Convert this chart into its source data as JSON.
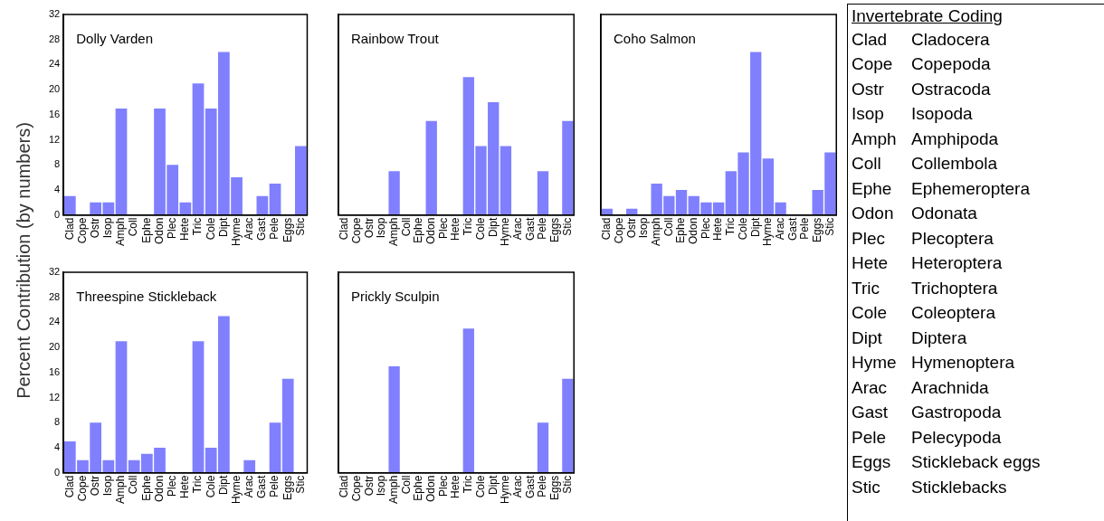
{
  "chart_data": [
    {
      "type": "bar",
      "title": "Dolly Varden",
      "ylabel": "Percent Contribution (by numbers)",
      "categories": [
        "Clad",
        "Cope",
        "Ostr",
        "Isop",
        "Amph",
        "Coll",
        "Ephe",
        "Odon",
        "Plec",
        "Hete",
        "Tric",
        "Cole",
        "Dipt",
        "Hyme",
        "Arac",
        "Gast",
        "Pele",
        "Eggs",
        "Stic"
      ],
      "color": "#8080ff",
      "values": [
        3,
        0,
        2,
        2,
        17,
        0,
        0,
        17,
        8,
        2,
        21,
        17,
        26,
        6,
        0,
        3,
        5,
        0,
        11
      ],
      "ylim": [
        0,
        32
      ],
      "yticks": [
        0,
        4,
        8,
        12,
        16,
        20,
        24,
        28,
        32
      ],
      "grid": false,
      "legend": false
    },
    {
      "type": "bar",
      "title": "Rainbow Trout",
      "categories": [
        "Clad",
        "Cope",
        "Ostr",
        "Isop",
        "Amph",
        "Coll",
        "Ephe",
        "Odon",
        "Plec",
        "Hete",
        "Tric",
        "Cole",
        "Dipt",
        "Hyme",
        "Arac",
        "Gast",
        "Pele",
        "Eggs",
        "Stic"
      ],
      "color": "#8080ff",
      "values": [
        0,
        0,
        0,
        0,
        7,
        0,
        0,
        15,
        0,
        0,
        22,
        11,
        18,
        11,
        0,
        0,
        7,
        0,
        15
      ],
      "ylim": [
        0,
        32
      ],
      "yticks": [
        0,
        4,
        8,
        12,
        16,
        20,
        24,
        28,
        32
      ],
      "tick_labels": "x",
      "grid": false,
      "legend": false
    },
    {
      "type": "bar",
      "title": "Coho Salmon",
      "categories": [
        "Clad",
        "Cope",
        "Ostr",
        "Isop",
        "Amph",
        "Coll",
        "Ephe",
        "Odon",
        "Plec",
        "Hete",
        "Tric",
        "Cole",
        "Dipt",
        "Hyme",
        "Arac",
        "Gast",
        "Pele",
        "Eggs",
        "Stic"
      ],
      "color": "#8080ff",
      "values": [
        1,
        0,
        1,
        0,
        5,
        3,
        4,
        3,
        2,
        2,
        7,
        10,
        26,
        9,
        2,
        0,
        0,
        4,
        10
      ],
      "ylim": [
        0,
        32
      ],
      "yticks": [
        0,
        4,
        8,
        12,
        16,
        20,
        24,
        28,
        32
      ],
      "tick_labels": "x",
      "grid": false,
      "legend": false
    },
    {
      "type": "bar",
      "title": "Threespine Stickleback",
      "categories": [
        "Clad",
        "Cope",
        "Ostr",
        "Isop",
        "Amph",
        "Coll",
        "Ephe",
        "Odon",
        "Plec",
        "Hete",
        "Tric",
        "Cole",
        "Dipt",
        "Hyme",
        "Arac",
        "Gast",
        "Pele",
        "Eggs",
        "Stic"
      ],
      "color": "#8080ff",
      "values": [
        5,
        2,
        8,
        2,
        21,
        2,
        3,
        4,
        0,
        0,
        21,
        4,
        25,
        0,
        2,
        0,
        8,
        15,
        0
      ],
      "ylim": [
        0,
        32
      ],
      "yticks": [
        0,
        4,
        8,
        12,
        16,
        20,
        24,
        28,
        32
      ],
      "grid": false,
      "legend": false
    },
    {
      "type": "bar",
      "title": "Prickly Sculpin",
      "categories": [
        "Clad",
        "Cope",
        "Ostr",
        "Isop",
        "Amph",
        "Coll",
        "Ephe",
        "Odon",
        "Plec",
        "Hete",
        "Tric",
        "Cole",
        "Dipt",
        "Hyme",
        "Arac",
        "Gast",
        "Pele",
        "Eggs",
        "Stic"
      ],
      "color": "#8080ff",
      "values": [
        0,
        0,
        0,
        0,
        17,
        0,
        0,
        0,
        0,
        0,
        23,
        0,
        0,
        0,
        0,
        0,
        8,
        0,
        15
      ],
      "ylim": [
        0,
        32
      ],
      "yticks": [
        0,
        4,
        8,
        12,
        16,
        20,
        24,
        28,
        32
      ],
      "tick_labels": "x",
      "grid": false,
      "legend": false
    },
    {
      "type": "other",
      "title": "Invertebrate Coding",
      "annotations": [
        "Clad Cladocera",
        "Cope Copepoda",
        "Ostr Ostracoda",
        "Isop Isopoda",
        "Amph Amphipoda",
        "Coll Collembola",
        "Ephe Ephemeroptera",
        "Odon Odonata",
        "Plec Plecoptera",
        "Hete Heteroptera",
        "Tric Trichoptera",
        "Cole Coleoptera",
        "Dipt Diptera",
        "Hyme Hymenoptera",
        "Arac Arachnida",
        "Gast Gastropoda",
        "Pele Pelecypoda",
        "Eggs Stickleback eggs",
        "Stic Sticklebacks"
      ]
    }
  ]
}
